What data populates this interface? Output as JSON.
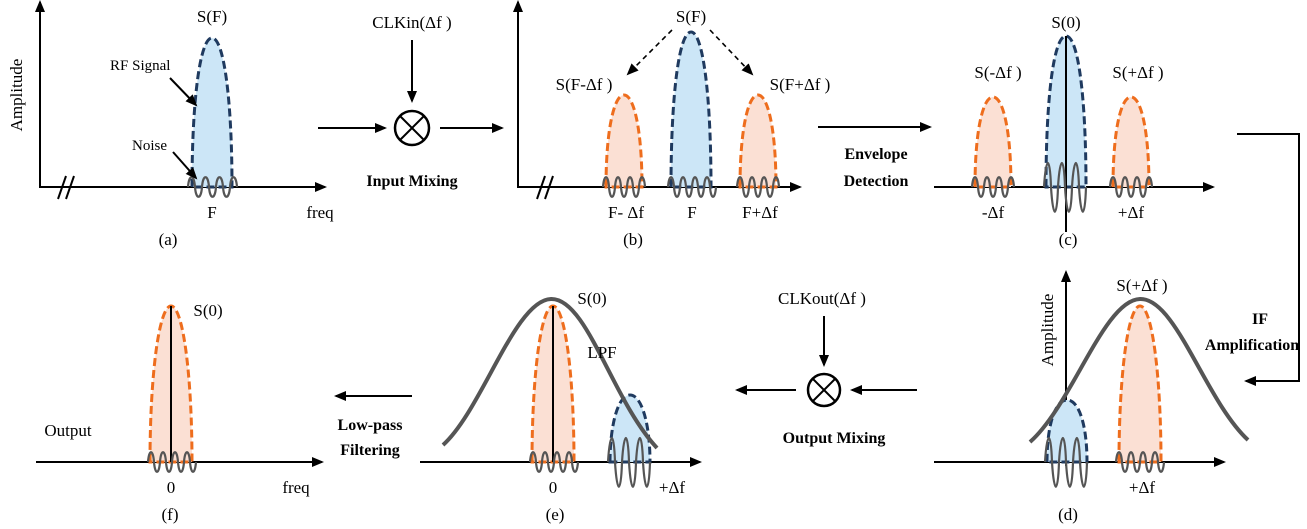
{
  "panels": {
    "a": {
      "caption": "(a)",
      "ylabel": "Amplitude",
      "peak": "S(F)",
      "rf": "RF Signal",
      "noise": "Noise",
      "tick": "F",
      "xlabel": "freq"
    },
    "b": {
      "caption": "(b)",
      "peak": "S(F)",
      "left": "S(F-Δf )",
      "right": "S(F+Δf )",
      "tick_left": "F- Δf",
      "tick_center": "F",
      "tick_right": "F+Δf"
    },
    "c": {
      "caption": "(c)",
      "peak": "S(0)",
      "left": "S(-Δf )",
      "right": "S(+Δf )",
      "tick_left": "-Δf",
      "tick_right": "+Δf"
    },
    "d": {
      "caption": "(d)",
      "ylabel": "Amplitude",
      "peak": "S(+Δf )",
      "tick": "+Δf"
    },
    "e": {
      "caption": "(e)",
      "peak": "S(0)",
      "filter": "LPF",
      "tick_center": "0",
      "tick_right": "+Δf"
    },
    "f": {
      "caption": "(f)",
      "peak": "S(0)",
      "side": "Output",
      "tick": "0",
      "xlabel": "freq"
    }
  },
  "stages": {
    "clk_in": "CLKin(Δf )",
    "input_mixing": "Input Mixing",
    "envelope_1": "Envelope",
    "envelope_2": "Detection",
    "if_1": "IF",
    "if_2": "Amplification",
    "clk_out": "CLKout(Δf )",
    "output_mixing": "Output Mixing",
    "lowpass_1": "Low-pass",
    "lowpass_2": "Filtering"
  }
}
